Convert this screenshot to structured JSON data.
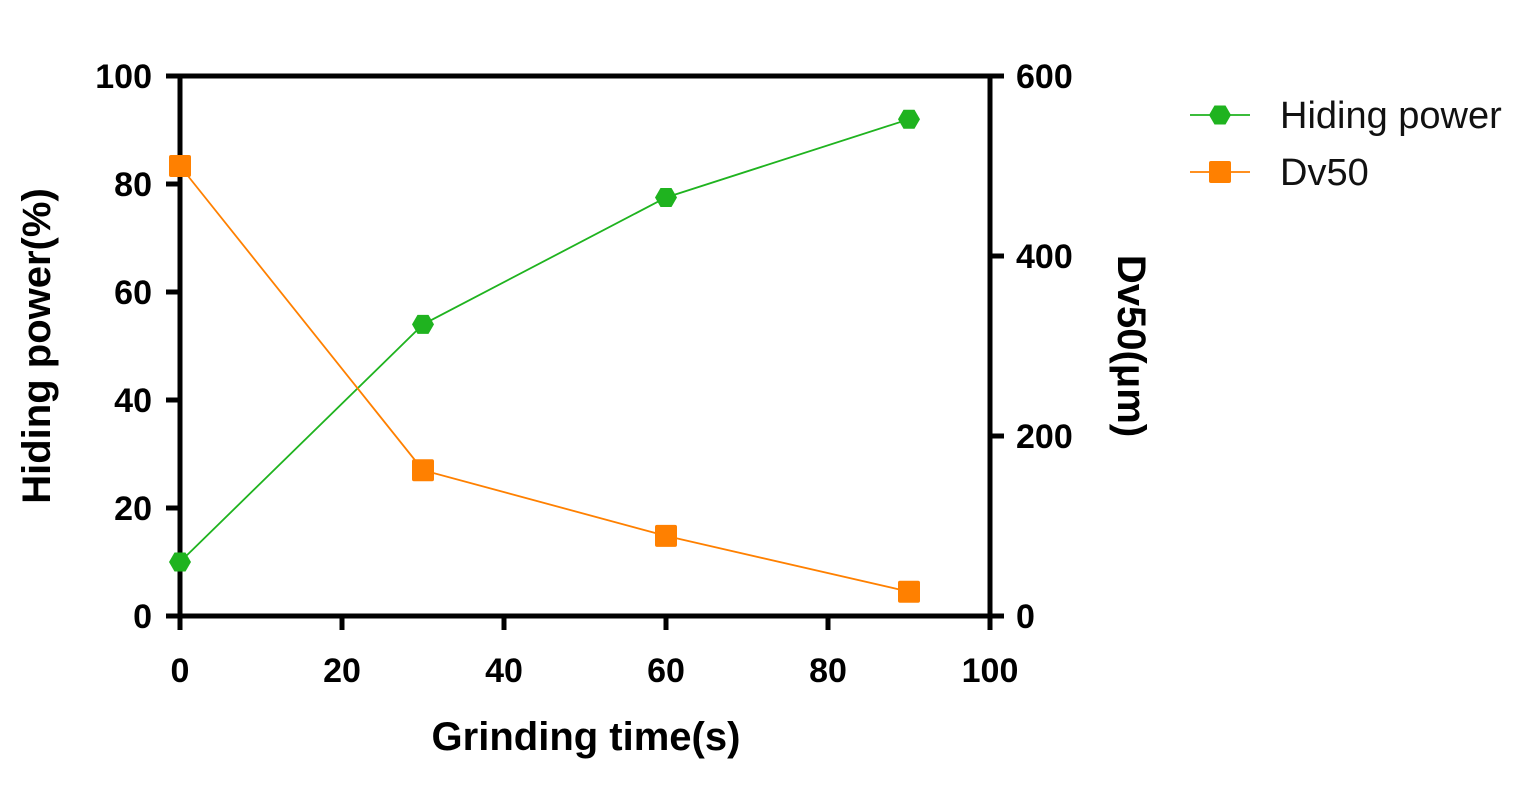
{
  "chart_data": {
    "type": "line",
    "title": "",
    "xlabel": "Grinding time(s)",
    "ylabel": "Hiding power(%)",
    "y2label": "Dv50(μm)",
    "xlim": [
      0,
      100
    ],
    "ylim": [
      0,
      100
    ],
    "y2lim": [
      0,
      600
    ],
    "xticks": [
      "0",
      "20",
      "40",
      "60",
      "80",
      "100"
    ],
    "yticks": [
      "0",
      "20",
      "40",
      "60",
      "80",
      "100"
    ],
    "y2ticks": [
      "0",
      "200",
      "400",
      "600"
    ],
    "grid": false,
    "legend_position": "top-right-outside",
    "x": [
      0,
      30,
      60,
      90
    ],
    "series": [
      {
        "name": "Hiding power",
        "axis": "left",
        "values": [
          10,
          54,
          77.5,
          92
        ],
        "color": "#1fb31f",
        "marker": "hexagon"
      },
      {
        "name": "Dv50",
        "axis": "right",
        "values": [
          500,
          162,
          89,
          27
        ],
        "color": "#ff8000",
        "marker": "square"
      }
    ]
  }
}
